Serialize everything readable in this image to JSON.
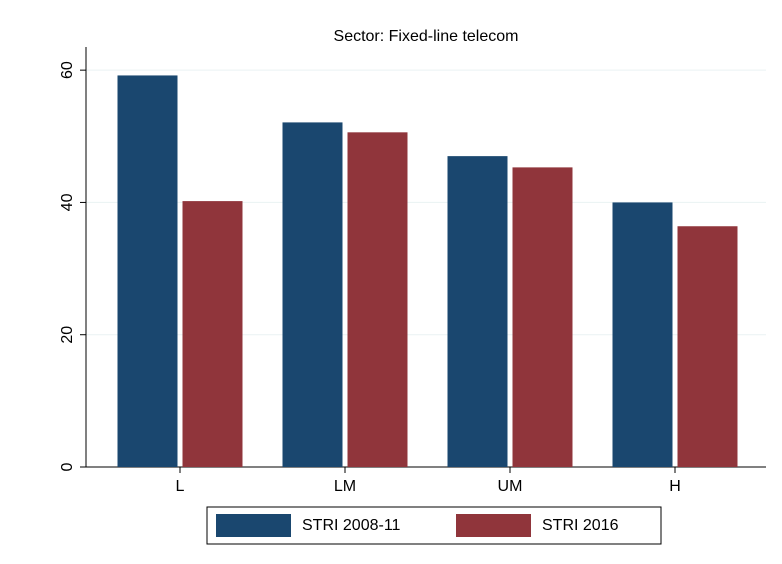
{
  "chart_data": {
    "type": "bar",
    "title": "Sector: Fixed-line telecom",
    "categories": [
      "L",
      "LM",
      "UM",
      "H"
    ],
    "series": [
      {
        "name": "STRI 2008-11",
        "color": "#1a476f",
        "values": [
          59.2,
          52.1,
          47.0,
          40.0
        ]
      },
      {
        "name": "STRI 2016",
        "color": "#90353b",
        "values": [
          40.2,
          50.6,
          45.3,
          36.4
        ]
      }
    ],
    "ylim": [
      0,
      63.5
    ],
    "yticks": [
      0,
      20,
      40,
      60
    ],
    "grid": true,
    "legend": "bottom"
  }
}
